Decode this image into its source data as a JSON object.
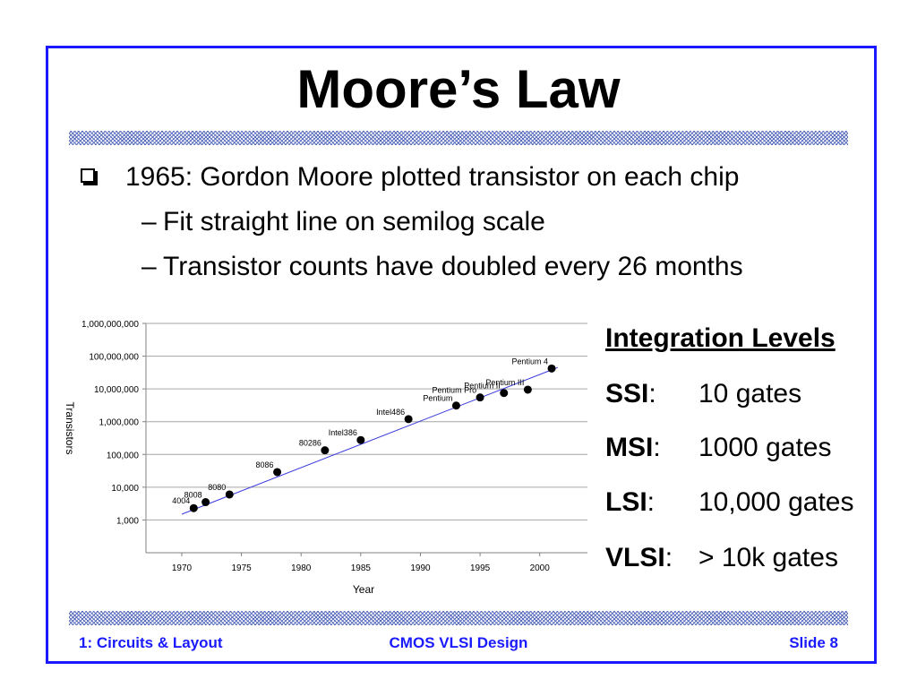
{
  "slide": {
    "title": "Moore’s Law",
    "accent_color": "#1a1aff",
    "bullets": [
      {
        "level": 1,
        "text": "1965: Gordon Moore plotted transistor on each chip"
      },
      {
        "level": 2,
        "dash": "–",
        "text": "Fit straight line on semilog scale"
      },
      {
        "level": 2,
        "dash": "–",
        "text": "Transistor counts have doubled every 26 months"
      }
    ],
    "bullet_icon": "checkbox-square-icon"
  },
  "integration_levels": {
    "title": "Integration Levels",
    "rows": [
      {
        "key": "SSI",
        "sep": ":",
        "value": "10 gates"
      },
      {
        "key": "MSI",
        "sep": ":",
        "value": "1000 gates"
      },
      {
        "key": "LSI",
        "sep": ":",
        "value": "10,000 gates"
      },
      {
        "key": "VLSI",
        "sep": ":",
        "value": "> 10k gates"
      }
    ]
  },
  "footer": {
    "left": "1: Circuits & Layout",
    "center": "CMOS VLSI Design",
    "right": "Slide 8"
  },
  "chart_data": {
    "type": "scatter",
    "title": "",
    "xlabel": "Year",
    "ylabel": "Transistors",
    "y_scale": "log",
    "xlim": [
      1967,
      2004
    ],
    "ylim": [
      100,
      1000000000
    ],
    "x_ticks": [
      1970,
      1975,
      1980,
      1985,
      1990,
      1995,
      2000
    ],
    "y_ticks": [
      {
        "value": 1000,
        "label": "1,000"
      },
      {
        "value": 10000,
        "label": "10,000"
      },
      {
        "value": 100000,
        "label": "100,000"
      },
      {
        "value": 1000000,
        "label": "1,000,000"
      },
      {
        "value": 10000000,
        "label": "10,000,000"
      },
      {
        "value": 100000000,
        "label": "100,000,000"
      },
      {
        "value": 1000000000,
        "label": "1,000,000,000"
      }
    ],
    "grid": "horizontal",
    "marker_color": "#000000",
    "trend_color": "#3a3adf",
    "trend_line": {
      "x": [
        1970,
        2001.5
      ],
      "y": [
        1500,
        45000000
      ]
    },
    "points": [
      {
        "label": "4004",
        "x": 1971,
        "y": 2300
      },
      {
        "label": "8008",
        "x": 1972,
        "y": 3500
      },
      {
        "label": "8080",
        "x": 1974,
        "y": 6000
      },
      {
        "label": "8086",
        "x": 1978,
        "y": 29000
      },
      {
        "label": "80286",
        "x": 1982,
        "y": 134000
      },
      {
        "label": "Intel386",
        "x": 1985,
        "y": 275000
      },
      {
        "label": "Intel486",
        "x": 1989,
        "y": 1200000
      },
      {
        "label": "Pentium",
        "x": 1993,
        "y": 3100000
      },
      {
        "label": "Pentium Pro",
        "x": 1995,
        "y": 5500000
      },
      {
        "label": "Pentium II",
        "x": 1997,
        "y": 7500000
      },
      {
        "label": "Pentium III",
        "x": 1999,
        "y": 9500000
      },
      {
        "label": "Pentium 4",
        "x": 2001,
        "y": 42000000
      }
    ]
  }
}
